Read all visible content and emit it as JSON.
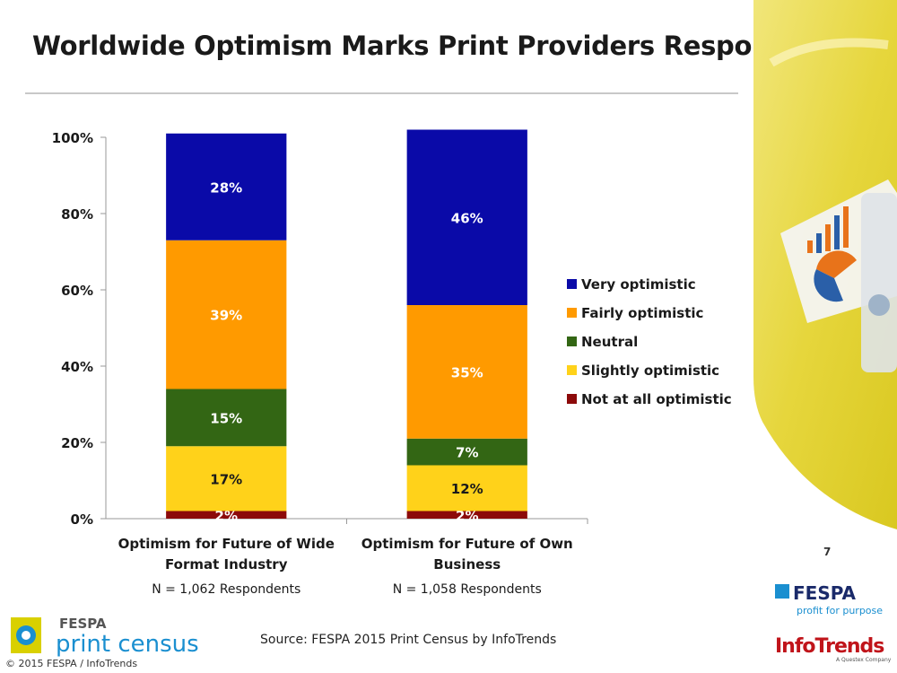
{
  "title": "Worldwide Optimism Marks Print Providers Response",
  "page_number": "7",
  "source": "Source: FESPA 2015 Print Census by InfoTrends",
  "copyright": "© 2015 FESPA  / InfoTrends",
  "logos": {
    "census_brand": "FESPA",
    "census_name": "print census",
    "fespa_name": "FESPA",
    "fespa_tagline": "profit for purpose",
    "infotrends_name": "InfoTrends",
    "infotrends_tagline": "A Questex Company"
  },
  "colors": {
    "very_optimistic": "#0a0aa8",
    "fairly_optimistic": "#ff9a00",
    "neutral": "#336614",
    "slightly_optimistic": "#ffd21a",
    "not_at_all_optimistic": "#8c0a0a",
    "deco_yellow": "#e8d84a"
  },
  "chart_data": {
    "type": "bar",
    "stacked": true,
    "title": "",
    "xlabel": "",
    "ylabel": "",
    "ylim": [
      0,
      100
    ],
    "y_ticks": [
      "0%",
      "20%",
      "40%",
      "60%",
      "80%",
      "100%"
    ],
    "categories": [
      "Optimism for Future of Wide Format Industry",
      "Optimism for Future of Own Business"
    ],
    "category_lines": [
      [
        "Optimism for Future of Wide",
        "Format Industry"
      ],
      [
        "Optimism for Future of Own",
        "Business"
      ]
    ],
    "respondents": [
      "N = 1,062 Respondents",
      "N = 1,058 Respondents"
    ],
    "legend_position": "right",
    "series": [
      {
        "name": "Not at all optimistic",
        "color": "#8c0a0a",
        "values": [
          2,
          2
        ],
        "labels": [
          "2%",
          "2%"
        ]
      },
      {
        "name": "Slightly optimistic",
        "color": "#ffd21a",
        "values": [
          17,
          12
        ],
        "labels": [
          "17%",
          "12%"
        ]
      },
      {
        "name": "Neutral",
        "color": "#336614",
        "values": [
          15,
          7
        ],
        "labels": [
          "15%",
          "7%"
        ]
      },
      {
        "name": "Fairly optimistic",
        "color": "#ff9a00",
        "values": [
          39,
          35
        ],
        "labels": [
          "39%",
          "35%"
        ]
      },
      {
        "name": "Very optimistic",
        "color": "#0a0aa8",
        "values": [
          28,
          46
        ],
        "labels": [
          "28%",
          "46%"
        ]
      }
    ],
    "legend_order": [
      "Very optimistic",
      "Fairly optimistic",
      "Neutral",
      "Slightly optimistic",
      "Not at all optimistic"
    ]
  }
}
